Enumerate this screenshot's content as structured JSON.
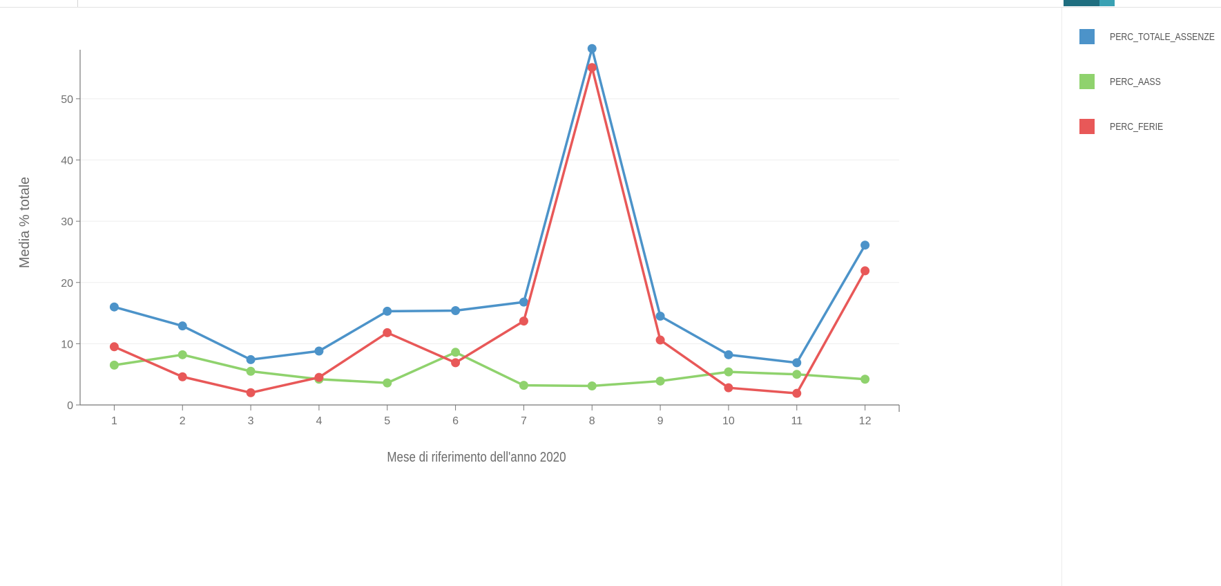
{
  "chart_data": {
    "type": "line",
    "title": "",
    "xlabel": "Mese di riferimento dell'anno 2020",
    "ylabel": "Media % totale",
    "x": [
      1,
      2,
      3,
      4,
      5,
      6,
      7,
      8,
      9,
      10,
      11,
      12
    ],
    "xticks": [
      "1",
      "2",
      "3",
      "4",
      "5",
      "6",
      "7",
      "8",
      "9",
      "10",
      "11",
      "12"
    ],
    "xlim": [
      0.5,
      12.5
    ],
    "ylim": [
      0,
      58
    ],
    "yticks": [
      0,
      10,
      20,
      30,
      40,
      50
    ],
    "grid": true,
    "legend_position": "right",
    "series": [
      {
        "name": "PERC_TOTALE_ASSENZE",
        "color": "#4c93c9",
        "values": [
          16.0,
          12.9,
          7.4,
          8.8,
          15.3,
          15.4,
          16.8,
          58.2,
          14.5,
          8.2,
          6.9,
          26.1
        ]
      },
      {
        "name": "PERC_AASS",
        "color": "#8fd26d",
        "values": [
          6.5,
          8.2,
          5.5,
          4.2,
          3.6,
          8.6,
          3.2,
          3.1,
          3.9,
          5.4,
          5.0,
          4.2
        ]
      },
      {
        "name": "PERC_FERIE",
        "color": "#e85858",
        "values": [
          9.5,
          4.6,
          2.0,
          4.5,
          11.8,
          6.9,
          13.7,
          55.1,
          10.6,
          2.8,
          1.9,
          21.9
        ]
      }
    ]
  },
  "legend": {
    "items": [
      {
        "label": "PERC_TOTALE_ASSENZE",
        "color": "#4c93c9"
      },
      {
        "label": "PERC_AASS",
        "color": "#8fd26d"
      },
      {
        "label": "PERC_FERIE",
        "color": "#e85858"
      }
    ]
  }
}
